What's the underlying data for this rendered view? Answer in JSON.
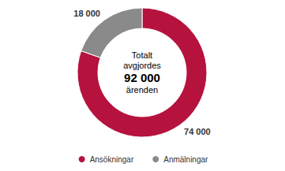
{
  "chart_data": {
    "type": "pie",
    "categories": [
      "Ansökningar",
      "Anmälningar"
    ],
    "values": [
      74000,
      18000
    ],
    "value_labels": [
      "74 000",
      "18 000"
    ],
    "colors": [
      "#b5123e",
      "#8a8a8a"
    ],
    "data_labels": true,
    "legend": "bottom",
    "center_text": {
      "before": [
        "Totalt",
        "avgjordes"
      ],
      "total": 92000,
      "total_label": "92 000",
      "after": [
        "ärenden"
      ]
    }
  }
}
